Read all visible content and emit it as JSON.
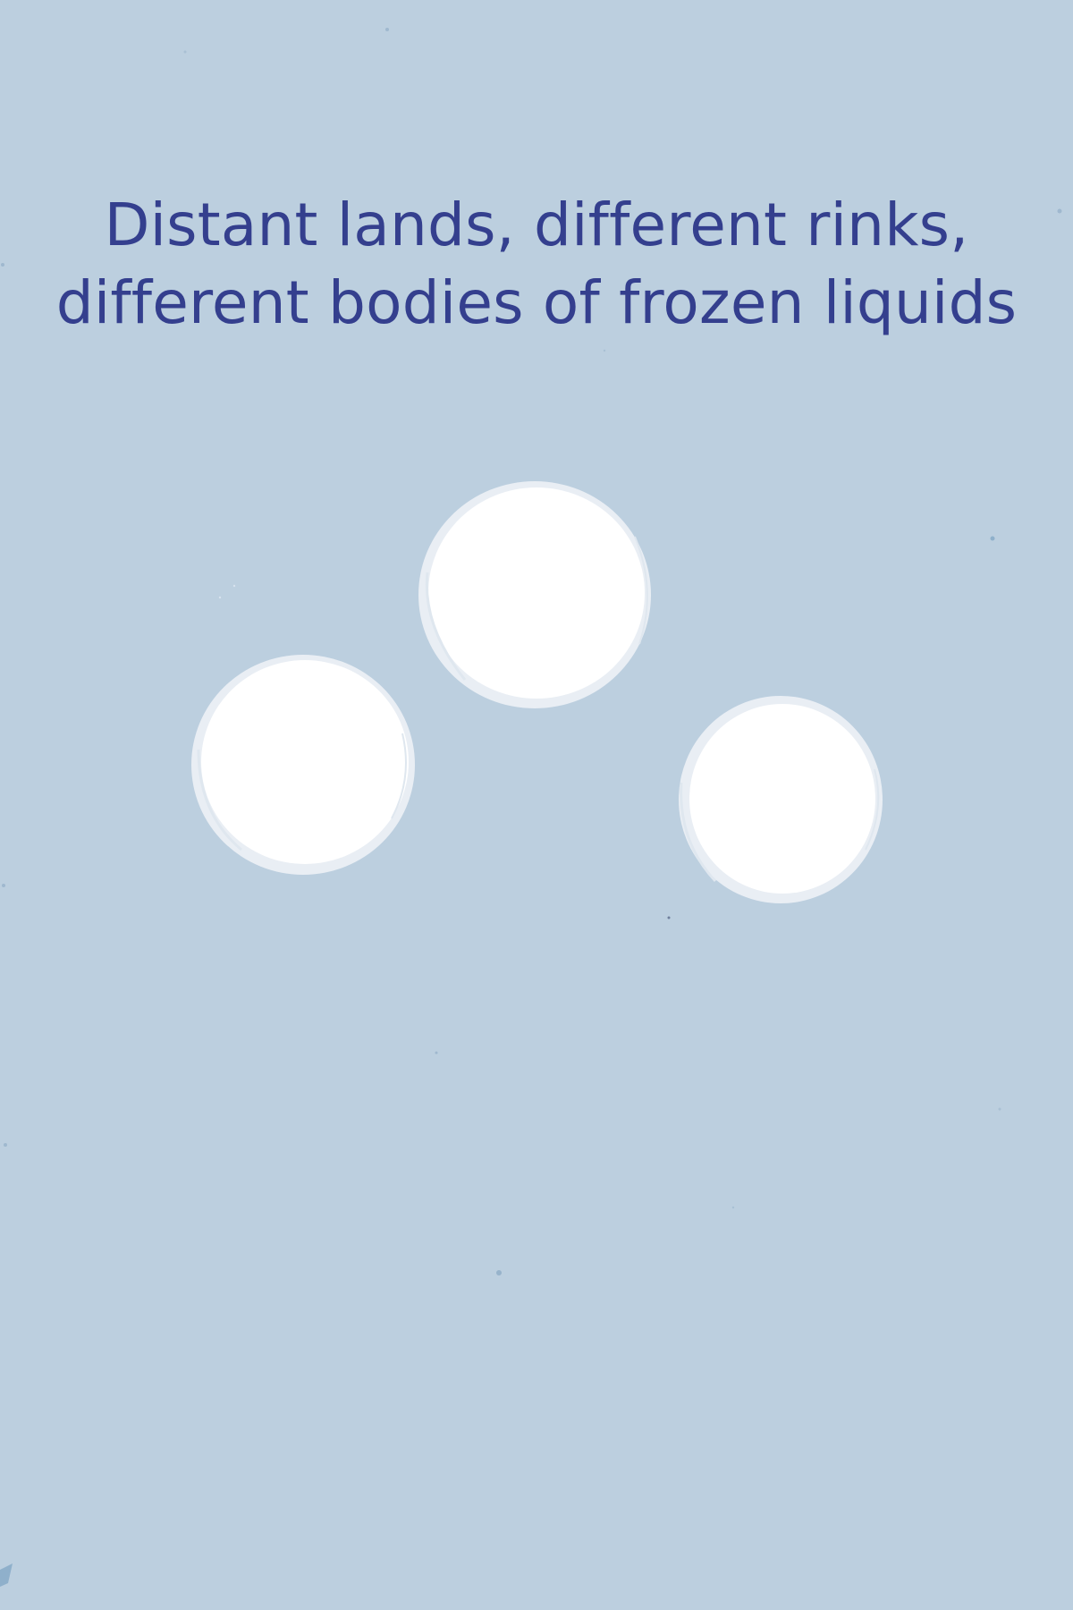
{
  "headline": {
    "line1": "Distant lands, different rinks,",
    "line2": "different bodies of frozen liquids"
  },
  "colors": {
    "background": "#bccfdf",
    "text": "#343f8e",
    "circle_fill": "#ffffff",
    "circle_edge": "#e9eef4"
  }
}
